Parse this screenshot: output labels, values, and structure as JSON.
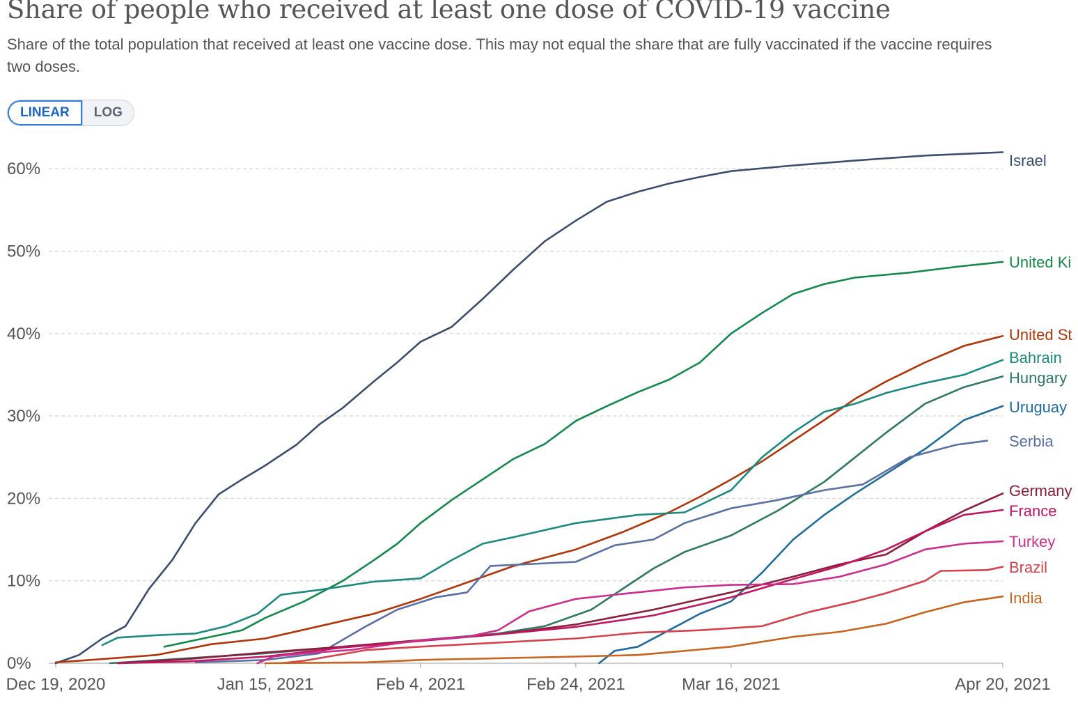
{
  "header": {
    "title": "Share of people who received at least one dose of COVID-19 vaccine",
    "subtitle": "Share of the total population that received at least one vaccine dose. This may not equal the share that are fully vaccinated if the vaccine requires two doses."
  },
  "scale_toggle": {
    "linear_label": "LINEAR",
    "log_label": "LOG",
    "selected": "LINEAR"
  },
  "chart_data": {
    "type": "line",
    "x_range": [
      "2020-12-19",
      "2021-04-20"
    ],
    "ylim": [
      0,
      62
    ],
    "y_ticks": [
      {
        "value": 0,
        "label": "0%"
      },
      {
        "value": 10,
        "label": "10%"
      },
      {
        "value": 20,
        "label": "20%"
      },
      {
        "value": 30,
        "label": "30%"
      },
      {
        "value": 40,
        "label": "40%"
      },
      {
        "value": 50,
        "label": "50%"
      },
      {
        "value": 60,
        "label": "60%"
      }
    ],
    "x_ticks": [
      {
        "date": "2020-12-19",
        "label": "Dec 19, 2020"
      },
      {
        "date": "2021-01-15",
        "label": "Jan 15, 2021"
      },
      {
        "date": "2021-02-04",
        "label": "Feb 4, 2021"
      },
      {
        "date": "2021-02-24",
        "label": "Feb 24, 2021"
      },
      {
        "date": "2021-03-16",
        "label": "Mar 16, 2021"
      },
      {
        "date": "2021-04-20",
        "label": "Apr 20, 2021"
      }
    ],
    "grid": "horizontal dashed",
    "legend": "right-end labels",
    "series": [
      {
        "name": "Israel",
        "color": "#3c4e6e",
        "points": [
          [
            "2020-12-19",
            0
          ],
          [
            "2020-12-22",
            1
          ],
          [
            "2020-12-25",
            3
          ],
          [
            "2020-12-28",
            4.5
          ],
          [
            "2020-12-31",
            9
          ],
          [
            "2021-01-03",
            12.5
          ],
          [
            "2021-01-06",
            17
          ],
          [
            "2021-01-09",
            20.5
          ],
          [
            "2021-01-12",
            22.3
          ],
          [
            "2021-01-15",
            24
          ],
          [
            "2021-01-19",
            26.5
          ],
          [
            "2021-01-22",
            29
          ],
          [
            "2021-01-25",
            31
          ],
          [
            "2021-01-29",
            34.2
          ],
          [
            "2021-02-01",
            36.5
          ],
          [
            "2021-02-04",
            39
          ],
          [
            "2021-02-08",
            40.8
          ],
          [
            "2021-02-12",
            44.2
          ],
          [
            "2021-02-16",
            47.8
          ],
          [
            "2021-02-20",
            51.2
          ],
          [
            "2021-02-24",
            53.7
          ],
          [
            "2021-02-28",
            56
          ],
          [
            "2021-03-04",
            57.2
          ],
          [
            "2021-03-08",
            58.2
          ],
          [
            "2021-03-12",
            59
          ],
          [
            "2021-03-16",
            59.7
          ],
          [
            "2021-03-24",
            60.4
          ],
          [
            "2021-04-01",
            61
          ],
          [
            "2021-04-10",
            61.6
          ],
          [
            "2021-04-20",
            62
          ]
        ]
      },
      {
        "name": "United Ki",
        "color": "#138a4b",
        "points": [
          [
            "2021-01-02",
            2
          ],
          [
            "2021-01-08",
            3.2
          ],
          [
            "2021-01-12",
            4
          ],
          [
            "2021-01-15",
            5.5
          ],
          [
            "2021-01-20",
            7.5
          ],
          [
            "2021-01-25",
            10
          ],
          [
            "2021-01-29",
            12.5
          ],
          [
            "2021-02-01",
            14.5
          ],
          [
            "2021-02-04",
            17
          ],
          [
            "2021-02-08",
            19.8
          ],
          [
            "2021-02-12",
            22.3
          ],
          [
            "2021-02-16",
            24.8
          ],
          [
            "2021-02-20",
            26.6
          ],
          [
            "2021-02-24",
            29.4
          ],
          [
            "2021-02-28",
            31.2
          ],
          [
            "2021-03-04",
            32.9
          ],
          [
            "2021-03-08",
            34.4
          ],
          [
            "2021-03-12",
            36.5
          ],
          [
            "2021-03-16",
            40
          ],
          [
            "2021-03-20",
            42.5
          ],
          [
            "2021-03-24",
            44.8
          ],
          [
            "2021-03-28",
            46
          ],
          [
            "2021-04-01",
            46.8
          ],
          [
            "2021-04-08",
            47.4
          ],
          [
            "2021-04-14",
            48.1
          ],
          [
            "2021-04-20",
            48.7
          ]
        ]
      },
      {
        "name": "United St",
        "color": "#b13507",
        "points": [
          [
            "2020-12-19",
            0.1
          ],
          [
            "2020-12-25",
            0.5
          ],
          [
            "2021-01-01",
            1
          ],
          [
            "2021-01-08",
            2.3
          ],
          [
            "2021-01-15",
            3
          ],
          [
            "2021-01-22",
            4.5
          ],
          [
            "2021-01-29",
            6
          ],
          [
            "2021-02-04",
            7.8
          ],
          [
            "2021-02-10",
            9.8
          ],
          [
            "2021-02-16",
            11.8
          ],
          [
            "2021-02-24",
            13.8
          ],
          [
            "2021-03-02",
            15.9
          ],
          [
            "2021-03-08",
            18.3
          ],
          [
            "2021-03-12",
            20.2
          ],
          [
            "2021-03-16",
            22.3
          ],
          [
            "2021-03-20",
            24.5
          ],
          [
            "2021-03-24",
            27
          ],
          [
            "2021-03-28",
            29.5
          ],
          [
            "2021-04-01",
            32.1
          ],
          [
            "2021-04-05",
            34.2
          ],
          [
            "2021-04-10",
            36.5
          ],
          [
            "2021-04-15",
            38.5
          ],
          [
            "2021-04-20",
            39.7
          ]
        ]
      },
      {
        "name": "Bahrain",
        "color": "#1a8a80",
        "points": [
          [
            "2020-12-25",
            2.2
          ],
          [
            "2020-12-27",
            3.1
          ],
          [
            "2021-01-01",
            3.4
          ],
          [
            "2021-01-06",
            3.6
          ],
          [
            "2021-01-10",
            4.5
          ],
          [
            "2021-01-14",
            6
          ],
          [
            "2021-01-17",
            8.3
          ],
          [
            "2021-01-22",
            8.9
          ],
          [
            "2021-01-29",
            9.9
          ],
          [
            "2021-02-04",
            10.3
          ],
          [
            "2021-02-08",
            12.5
          ],
          [
            "2021-02-12",
            14.5
          ],
          [
            "2021-02-16",
            15.3
          ],
          [
            "2021-02-24",
            17
          ],
          [
            "2021-03-04",
            18
          ],
          [
            "2021-03-10",
            18.3
          ],
          [
            "2021-03-16",
            21
          ],
          [
            "2021-03-20",
            25
          ],
          [
            "2021-03-24",
            28
          ],
          [
            "2021-03-28",
            30.5
          ],
          [
            "2021-04-01",
            31.5
          ],
          [
            "2021-04-05",
            32.8
          ],
          [
            "2021-04-10",
            34
          ],
          [
            "2021-04-15",
            35
          ],
          [
            "2021-04-20",
            36.8
          ]
        ]
      },
      {
        "name": "Hungary",
        "color": "#2f7a5d",
        "points": [
          [
            "2020-12-26",
            0
          ],
          [
            "2021-01-05",
            0.6
          ],
          [
            "2021-01-15",
            1.2
          ],
          [
            "2021-01-25",
            2
          ],
          [
            "2021-02-04",
            2.8
          ],
          [
            "2021-02-14",
            3.6
          ],
          [
            "2021-02-20",
            4.5
          ],
          [
            "2021-02-26",
            6.5
          ],
          [
            "2021-03-02",
            9
          ],
          [
            "2021-03-06",
            11.5
          ],
          [
            "2021-03-10",
            13.5
          ],
          [
            "2021-03-16",
            15.5
          ],
          [
            "2021-03-22",
            18.5
          ],
          [
            "2021-03-28",
            22
          ],
          [
            "2021-04-01",
            25
          ],
          [
            "2021-04-05",
            28
          ],
          [
            "2021-04-10",
            31.5
          ],
          [
            "2021-04-15",
            33.5
          ],
          [
            "2021-04-20",
            34.8
          ]
        ]
      },
      {
        "name": "Uruguay",
        "color": "#1f6c9c",
        "points": [
          [
            "2021-02-27",
            0
          ],
          [
            "2021-03-01",
            1.5
          ],
          [
            "2021-03-04",
            2
          ],
          [
            "2021-03-08",
            4
          ],
          [
            "2021-03-12",
            6
          ],
          [
            "2021-03-16",
            7.5
          ],
          [
            "2021-03-20",
            11
          ],
          [
            "2021-03-24",
            15
          ],
          [
            "2021-03-28",
            18
          ],
          [
            "2021-04-01",
            20.6
          ],
          [
            "2021-04-05",
            23
          ],
          [
            "2021-04-10",
            26
          ],
          [
            "2021-04-15",
            29.5
          ],
          [
            "2021-04-20",
            31.2
          ]
        ]
      },
      {
        "name": "Serbia",
        "color": "#5a6fa3",
        "points": [
          [
            "2021-01-06",
            0.1
          ],
          [
            "2021-01-15",
            0.4
          ],
          [
            "2021-01-22",
            1.2
          ],
          [
            "2021-01-28",
            4.5
          ],
          [
            "2021-02-01",
            6.5
          ],
          [
            "2021-02-06",
            8
          ],
          [
            "2021-02-10",
            8.6
          ],
          [
            "2021-02-13",
            11.8
          ],
          [
            "2021-02-24",
            12.3
          ],
          [
            "2021-03-01",
            14.3
          ],
          [
            "2021-03-06",
            15
          ],
          [
            "2021-03-10",
            17
          ],
          [
            "2021-03-16",
            18.8
          ],
          [
            "2021-03-22",
            19.8
          ],
          [
            "2021-03-28",
            21
          ],
          [
            "2021-04-02",
            21.7
          ],
          [
            "2021-04-08",
            25
          ],
          [
            "2021-04-14",
            26.5
          ],
          [
            "2021-04-18",
            27
          ]
        ]
      },
      {
        "name": "Germany",
        "color": "#8b1f3b",
        "points": [
          [
            "2020-12-27",
            0
          ],
          [
            "2021-01-05",
            0.5
          ],
          [
            "2021-01-15",
            1.3
          ],
          [
            "2021-01-25",
            2
          ],
          [
            "2021-02-04",
            2.8
          ],
          [
            "2021-02-14",
            3.5
          ],
          [
            "2021-02-24",
            4.7
          ],
          [
            "2021-03-06",
            6.5
          ],
          [
            "2021-03-16",
            8.6
          ],
          [
            "2021-03-24",
            10.5
          ],
          [
            "2021-03-30",
            12
          ],
          [
            "2021-04-05",
            13.2
          ],
          [
            "2021-04-10",
            16
          ],
          [
            "2021-04-15",
            18.5
          ],
          [
            "2021-04-20",
            20.6
          ]
        ]
      },
      {
        "name": "France",
        "color": "#c2155f",
        "points": [
          [
            "2020-12-27",
            0
          ],
          [
            "2021-01-05",
            0.2
          ],
          [
            "2021-01-15",
            0.8
          ],
          [
            "2021-01-25",
            1.9
          ],
          [
            "2021-02-04",
            2.7
          ],
          [
            "2021-02-14",
            3.5
          ],
          [
            "2021-02-24",
            4.4
          ],
          [
            "2021-03-06",
            5.8
          ],
          [
            "2021-03-16",
            8
          ],
          [
            "2021-03-24",
            10.2
          ],
          [
            "2021-03-30",
            11.8
          ],
          [
            "2021-04-05",
            13.8
          ],
          [
            "2021-04-10",
            16
          ],
          [
            "2021-04-15",
            18
          ],
          [
            "2021-04-20",
            18.6
          ]
        ]
      },
      {
        "name": "Turkey",
        "color": "#cd2f8c",
        "points": [
          [
            "2021-01-14",
            0
          ],
          [
            "2021-01-16",
            0.8
          ],
          [
            "2021-01-20",
            1.2
          ],
          [
            "2021-01-26",
            1.6
          ],
          [
            "2021-02-04",
            2.8
          ],
          [
            "2021-02-10",
            3.2
          ],
          [
            "2021-02-14",
            4
          ],
          [
            "2021-02-18",
            6.3
          ],
          [
            "2021-02-24",
            7.8
          ],
          [
            "2021-03-02",
            8.4
          ],
          [
            "2021-03-06",
            8.8
          ],
          [
            "2021-03-10",
            9.2
          ],
          [
            "2021-03-16",
            9.5
          ],
          [
            "2021-03-24",
            9.6
          ],
          [
            "2021-03-30",
            10.5
          ],
          [
            "2021-04-05",
            12
          ],
          [
            "2021-04-10",
            13.8
          ],
          [
            "2021-04-15",
            14.5
          ],
          [
            "2021-04-20",
            14.8
          ]
        ]
      },
      {
        "name": "Brazil",
        "color": "#d4424e",
        "points": [
          [
            "2021-01-17",
            0
          ],
          [
            "2021-01-20",
            0.3
          ],
          [
            "2021-01-28",
            1.6
          ],
          [
            "2021-02-04",
            2
          ],
          [
            "2021-02-14",
            2.5
          ],
          [
            "2021-02-24",
            3
          ],
          [
            "2021-03-04",
            3.7
          ],
          [
            "2021-03-12",
            4
          ],
          [
            "2021-03-20",
            4.5
          ],
          [
            "2021-03-26",
            6.2
          ],
          [
            "2021-04-01",
            7.5
          ],
          [
            "2021-04-05",
            8.5
          ],
          [
            "2021-04-10",
            10
          ],
          [
            "2021-04-12",
            11.2
          ],
          [
            "2021-04-18",
            11.3
          ],
          [
            "2021-04-20",
            11.7
          ]
        ]
      },
      {
        "name": "India",
        "color": "#c7641e",
        "points": [
          [
            "2021-01-15",
            0
          ],
          [
            "2021-01-28",
            0.1
          ],
          [
            "2021-02-04",
            0.4
          ],
          [
            "2021-02-14",
            0.6
          ],
          [
            "2021-02-24",
            0.8
          ],
          [
            "2021-03-04",
            1
          ],
          [
            "2021-03-10",
            1.5
          ],
          [
            "2021-03-16",
            2
          ],
          [
            "2021-03-24",
            3.2
          ],
          [
            "2021-03-30",
            3.8
          ],
          [
            "2021-04-05",
            4.8
          ],
          [
            "2021-04-10",
            6.2
          ],
          [
            "2021-04-15",
            7.4
          ],
          [
            "2021-04-20",
            8.1
          ]
        ]
      }
    ]
  }
}
